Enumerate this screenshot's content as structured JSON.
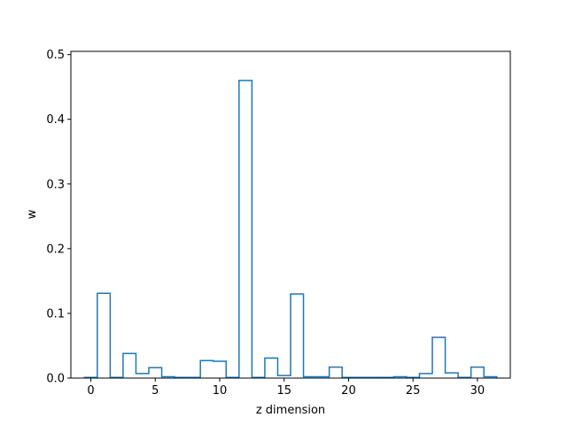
{
  "chart_data": {
    "type": "step",
    "title": "",
    "xlabel": "z dimension",
    "ylabel": "w",
    "xlim": [
      -1.55,
      32.55
    ],
    "ylim": [
      0,
      0.505
    ],
    "grid": false,
    "legend": "none",
    "series": [
      {
        "color": "#1f77b4",
        "x": [
          0,
          1,
          2,
          3,
          4,
          5,
          6,
          7,
          8,
          9,
          10,
          11,
          12,
          13,
          14,
          15,
          16,
          17,
          18,
          19,
          20,
          21,
          22,
          23,
          24,
          25,
          26,
          27,
          28,
          29,
          30,
          31
        ],
        "values": [
          0.001,
          0.131,
          0.001,
          0.038,
          0.007,
          0.016,
          0.002,
          0.001,
          0.001,
          0.027,
          0.026,
          0.001,
          0.46,
          0.001,
          0.031,
          0.004,
          0.13,
          0.002,
          0.002,
          0.017,
          0.001,
          0.001,
          0.001,
          0.001,
          0.002,
          0.001,
          0.007,
          0.063,
          0.008,
          0.001,
          0.017,
          0.002
        ]
      }
    ],
    "x_ticks": [
      {
        "value": 0,
        "label": "0"
      },
      {
        "value": 5,
        "label": "5"
      },
      {
        "value": 10,
        "label": "10"
      },
      {
        "value": 15,
        "label": "15"
      },
      {
        "value": 20,
        "label": "20"
      },
      {
        "value": 25,
        "label": "25"
      },
      {
        "value": 30,
        "label": "30"
      }
    ],
    "y_ticks": [
      {
        "value": 0.0,
        "label": "0.0"
      },
      {
        "value": 0.1,
        "label": "0.1"
      },
      {
        "value": 0.2,
        "label": "0.2"
      },
      {
        "value": 0.3,
        "label": "0.3"
      },
      {
        "value": 0.4,
        "label": "0.4"
      },
      {
        "value": 0.5,
        "label": "0.5"
      }
    ]
  }
}
